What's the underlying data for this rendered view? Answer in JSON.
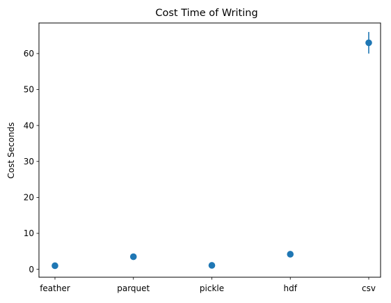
{
  "chart_data": {
    "type": "scatter",
    "title": "Cost Time of Writing",
    "xlabel": "",
    "ylabel": "Cost Seconds",
    "categories": [
      "feather",
      "parquet",
      "pickle",
      "hdf",
      "csv"
    ],
    "values": [
      1.0,
      3.5,
      1.1,
      4.2,
      63.0
    ],
    "errors": [
      0.3,
      0.4,
      0.3,
      0.4,
      3.0
    ],
    "ylim": [
      -2.2,
      68.5
    ],
    "yticks": [
      0,
      10,
      20,
      30,
      40,
      50,
      60
    ],
    "grid": false,
    "marker_color": "#1f77b4"
  }
}
